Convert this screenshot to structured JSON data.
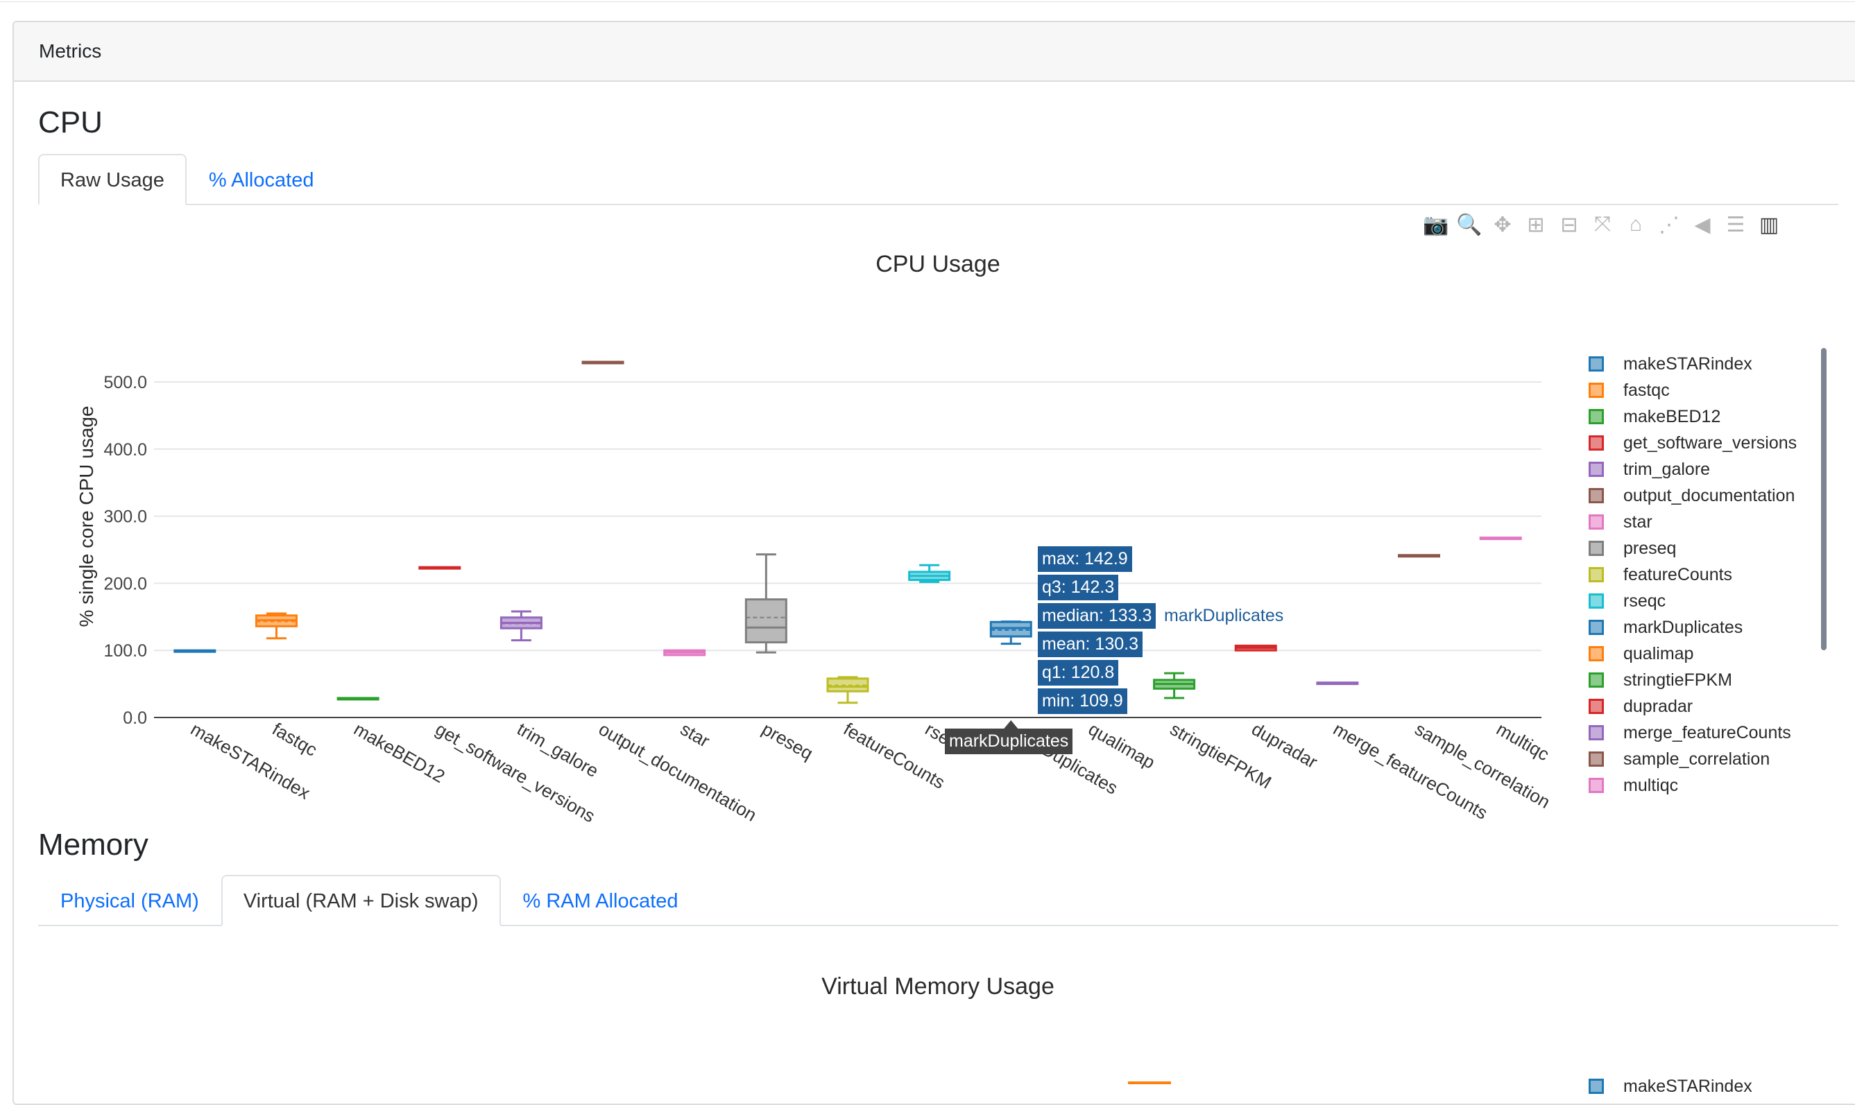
{
  "card_header": "Metrics",
  "cpu": {
    "title": "CPU",
    "tabs": [
      {
        "label": "Raw Usage",
        "active": true
      },
      {
        "label": "% Allocated",
        "active": false
      }
    ]
  },
  "memory": {
    "title": "Memory",
    "tabs": [
      {
        "label": "Physical (RAM)",
        "active": false
      },
      {
        "label": "Virtual (RAM + Disk swap)",
        "active": true
      },
      {
        "label": "% RAM Allocated",
        "active": false
      }
    ]
  },
  "modebar": [
    {
      "name": "camera-icon",
      "glyph": "📷"
    },
    {
      "name": "zoom-icon",
      "glyph": "🔍",
      "active": true
    },
    {
      "name": "pan-icon",
      "glyph": "✥"
    },
    {
      "name": "zoom-in-icon",
      "glyph": "⊞"
    },
    {
      "name": "zoom-out-icon",
      "glyph": "⊟"
    },
    {
      "name": "autoscale-icon",
      "glyph": "⤧"
    },
    {
      "name": "reset-axes-icon",
      "glyph": "⌂"
    },
    {
      "name": "spike-lines-icon",
      "glyph": "⋰"
    },
    {
      "name": "hover-closest-icon",
      "glyph": "◀"
    },
    {
      "name": "hover-compare-icon",
      "glyph": "☰"
    },
    {
      "name": "plotly-logo-icon",
      "glyph": "▥",
      "active": true
    }
  ],
  "chart_data": [
    {
      "type": "box",
      "title": "CPU Usage",
      "ylabel": "% single core CPU usage",
      "xlabel": "",
      "ylim": [
        0,
        530
      ],
      "yticks": [
        "0.0",
        "100.0",
        "200.0",
        "300.0",
        "400.0",
        "500.0"
      ],
      "ytick_values": [
        0,
        100,
        200,
        300,
        400,
        500
      ],
      "grid": true,
      "legend_position": "right",
      "categories": [
        "makeSTARindex",
        "fastqc",
        "makeBED12",
        "get_software_versions",
        "trim_galore",
        "output_documentation",
        "star",
        "preseq",
        "featureCounts",
        "rseqc",
        "markDuplicates",
        "qualimap",
        "stringtieFPKM",
        "dupradar",
        "merge_featureCounts",
        "sample_correlation",
        "multiqc"
      ],
      "series": [
        {
          "name": "makeSTARindex",
          "color": "#1f77b4",
          "min": 100,
          "q1": 100,
          "median": 100,
          "mean": 100,
          "q3": 100,
          "max": 100
        },
        {
          "name": "fastqc",
          "color": "#ff7f0e",
          "min": 118,
          "q1": 136,
          "median": 145,
          "mean": 143,
          "q3": 152,
          "max": 155
        },
        {
          "name": "makeBED12",
          "color": "#2ca02c",
          "min": 29,
          "q1": 29,
          "median": 29,
          "mean": 29,
          "q3": 29,
          "max": 29
        },
        {
          "name": "get_software_versions",
          "color": "#d62728",
          "min": 224,
          "q1": 224,
          "median": 224,
          "mean": 224,
          "q3": 224,
          "max": 224
        },
        {
          "name": "trim_galore",
          "color": "#9467bd",
          "min": 115,
          "q1": 133,
          "median": 141,
          "mean": 140,
          "q3": 149,
          "max": 158
        },
        {
          "name": "output_documentation",
          "color": "#8c564b",
          "min": 530,
          "q1": 530,
          "median": 530,
          "mean": 530,
          "q3": 530,
          "max": 530
        },
        {
          "name": "star",
          "color": "#e377c2",
          "min": 93,
          "q1": 93,
          "median": 97,
          "mean": 97,
          "q3": 100,
          "max": 100
        },
        {
          "name": "preseq",
          "color": "#7f7f7f",
          "min": 97,
          "q1": 112,
          "median": 134,
          "mean": 149,
          "q3": 176,
          "max": 243
        },
        {
          "name": "featureCounts",
          "color": "#bcbd22",
          "min": 22,
          "q1": 39,
          "median": 46,
          "mean": 48,
          "q3": 58,
          "max": 60
        },
        {
          "name": "rseqc",
          "color": "#17becf",
          "min": 202,
          "q1": 205,
          "median": 211,
          "mean": 211,
          "q3": 217,
          "max": 227
        },
        {
          "name": "markDuplicates",
          "color": "#1f77b4",
          "min": 109.9,
          "q1": 120.8,
          "median": 133.3,
          "mean": 130.3,
          "q3": 142.3,
          "max": 142.9
        },
        {
          "name": "qualimap",
          "color": "#ff7f0e",
          "min": null,
          "q1": null,
          "median": null,
          "mean": null,
          "q3": null,
          "max": null
        },
        {
          "name": "stringtieFPKM",
          "color": "#2ca02c",
          "min": 29,
          "q1": 43,
          "median": 50,
          "mean": 50,
          "q3": 56,
          "max": 66
        },
        {
          "name": "dupradar",
          "color": "#d62728",
          "min": 100,
          "q1": 100,
          "median": 104,
          "mean": 104,
          "q3": 107,
          "max": 107
        },
        {
          "name": "merge_featureCounts",
          "color": "#9467bd",
          "min": 52,
          "q1": 52,
          "median": 52,
          "mean": 52,
          "q3": 52,
          "max": 52
        },
        {
          "name": "sample_correlation",
          "color": "#8c564b",
          "min": 242,
          "q1": 242,
          "median": 242,
          "mean": 242,
          "q3": 242,
          "max": 242
        },
        {
          "name": "multiqc",
          "color": "#e377c2",
          "min": 268,
          "q1": 268,
          "median": 268,
          "mean": 268,
          "q3": 268,
          "max": 268
        }
      ],
      "hover": {
        "category": "markDuplicates",
        "labels": [
          "max: 142.9",
          "q3: 142.3",
          "median: 133.3",
          "mean: 130.3",
          "q1: 120.8",
          "min: 109.9"
        ],
        "trace_name": "markDuplicates",
        "x_label": "markDuplicates"
      }
    },
    {
      "type": "box",
      "title": "Virtual Memory Usage",
      "legend_position": "right",
      "series": [
        {
          "name": "makeSTARindex",
          "color": "#1f77b4"
        }
      ]
    }
  ]
}
